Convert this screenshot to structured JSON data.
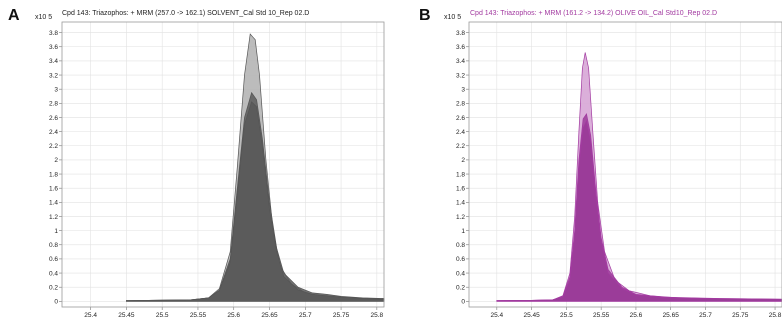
{
  "chart_data": [
    {
      "panel_label": "A",
      "type": "area",
      "title": "Cpd 143: Triazophos: + MRM (257.0 -> 162.1) SOLVENT_Cal Std 10_Rep 02.D",
      "y_multiplier_label": "x10 5",
      "xlim": [
        25.36,
        25.81
      ],
      "ylim": [
        -0.08,
        3.95
      ],
      "x_ticks": [
        "25.4",
        "25.45",
        "25.5",
        "25.55",
        "25.6",
        "25.65",
        "25.7",
        "25.75",
        "25.8"
      ],
      "x_tick_values": [
        25.4,
        25.45,
        25.5,
        25.55,
        25.6,
        25.65,
        25.7,
        25.75,
        25.8
      ],
      "y_ticks": [
        "0",
        "0.2",
        "0.4",
        "0.6",
        "0.8",
        "1",
        "1.2",
        "1.4",
        "1.6",
        "1.8",
        "2",
        "2.2",
        "2.4",
        "2.6",
        "2.8",
        "3",
        "3.2",
        "3.4",
        "3.6",
        "3.8"
      ],
      "y_tick_values": [
        0,
        0.2,
        0.4,
        0.6,
        0.8,
        1,
        1.2,
        1.4,
        1.6,
        1.8,
        2,
        2.2,
        2.4,
        2.6,
        2.8,
        3,
        3.2,
        3.4,
        3.6,
        3.8
      ],
      "grid": true,
      "series_color": "#555555",
      "series_fill": "#5a5a5a",
      "series_fill_light": "#b5b5b5",
      "series": [
        {
          "values": [
            [
              25.45,
              0.01
            ],
            [
              25.54,
              0.02
            ],
            [
              25.565,
              0.05
            ],
            [
              25.58,
              0.18
            ],
            [
              25.595,
              0.7
            ],
            [
              25.605,
              1.9
            ],
            [
              25.615,
              3.2
            ],
            [
              25.623,
              3.78
            ],
            [
              25.63,
              3.7
            ],
            [
              25.636,
              3.2
            ],
            [
              25.645,
              2.0
            ],
            [
              25.655,
              1.0
            ],
            [
              25.665,
              0.5
            ],
            [
              25.68,
              0.25
            ],
            [
              25.7,
              0.12
            ],
            [
              25.72,
              0.08
            ],
            [
              25.74,
              0.06
            ],
            [
              25.78,
              0.04
            ],
            [
              25.81,
              0.03
            ]
          ]
        },
        {
          "values": [
            [
              25.45,
              0.01
            ],
            [
              25.54,
              0.02
            ],
            [
              25.565,
              0.05
            ],
            [
              25.58,
              0.16
            ],
            [
              25.595,
              0.6
            ],
            [
              25.605,
              1.6
            ],
            [
              25.615,
              2.6
            ],
            [
              25.625,
              2.95
            ],
            [
              25.632,
              2.85
            ],
            [
              25.64,
              2.3
            ],
            [
              25.65,
              1.4
            ],
            [
              25.66,
              0.75
            ],
            [
              25.67,
              0.4
            ],
            [
              25.69,
              0.2
            ],
            [
              25.71,
              0.12
            ],
            [
              25.73,
              0.1
            ],
            [
              25.75,
              0.07
            ],
            [
              25.78,
              0.05
            ],
            [
              25.81,
              0.04
            ]
          ]
        },
        {
          "values": [
            [
              25.45,
              0.01
            ],
            [
              25.54,
              0.02
            ],
            [
              25.565,
              0.05
            ],
            [
              25.58,
              0.15
            ],
            [
              25.595,
              0.55
            ],
            [
              25.605,
              1.5
            ],
            [
              25.615,
              2.5
            ],
            [
              25.625,
              2.82
            ],
            [
              25.632,
              2.75
            ],
            [
              25.64,
              2.2
            ],
            [
              25.65,
              1.3
            ],
            [
              25.66,
              0.7
            ],
            [
              25.67,
              0.35
            ],
            [
              25.69,
              0.16
            ],
            [
              25.71,
              0.1
            ],
            [
              25.73,
              0.08
            ],
            [
              25.75,
              0.06
            ],
            [
              25.78,
              0.04
            ],
            [
              25.81,
              0.03
            ]
          ]
        }
      ]
    },
    {
      "panel_label": "B",
      "type": "area",
      "title": "Cpd 143: Triazophos: + MRM (161.2 -> 134.2) OLIVE OIL_Cal Std10_Rep 02.D",
      "y_multiplier_label": "x10 5",
      "xlim": [
        25.36,
        25.81
      ],
      "ylim": [
        -0.08,
        3.95
      ],
      "x_ticks": [
        "25.4",
        "25.45",
        "25.5",
        "25.55",
        "25.6",
        "25.65",
        "25.7",
        "25.75",
        "25.8"
      ],
      "x_tick_values": [
        25.4,
        25.45,
        25.5,
        25.55,
        25.6,
        25.65,
        25.7,
        25.75,
        25.8
      ],
      "y_ticks": [
        "0",
        "0.2",
        "0.4",
        "0.6",
        "0.8",
        "1",
        "1.2",
        "1.4",
        "1.6",
        "1.8",
        "2",
        "2.2",
        "2.4",
        "2.6",
        "2.8",
        "3",
        "3.2",
        "3.4",
        "3.6",
        "3.8"
      ],
      "y_tick_values": [
        0,
        0.2,
        0.4,
        0.6,
        0.8,
        1,
        1.2,
        1.4,
        1.6,
        1.8,
        2,
        2.2,
        2.4,
        2.6,
        2.8,
        3,
        3.2,
        3.4,
        3.6,
        3.8
      ],
      "grid": true,
      "series_color": "#a23aa0",
      "series_fill": "#9a3b98",
      "series_fill_light": "#d7a6d6",
      "series": [
        {
          "values": [
            [
              25.4,
              0.01
            ],
            [
              25.45,
              0.015
            ],
            [
              25.48,
              0.02
            ],
            [
              25.495,
              0.08
            ],
            [
              25.505,
              0.4
            ],
            [
              25.512,
              1.2
            ],
            [
              25.518,
              2.4
            ],
            [
              25.523,
              3.3
            ],
            [
              25.527,
              3.52
            ],
            [
              25.532,
              3.3
            ],
            [
              25.538,
              2.4
            ],
            [
              25.545,
              1.4
            ],
            [
              25.555,
              0.7
            ],
            [
              25.57,
              0.3
            ],
            [
              25.59,
              0.15
            ],
            [
              25.62,
              0.08
            ],
            [
              25.66,
              0.05
            ],
            [
              25.7,
              0.04
            ],
            [
              25.75,
              0.03
            ],
            [
              25.81,
              0.02
            ]
          ]
        },
        {
          "values": [
            [
              25.4,
              0.01
            ],
            [
              25.45,
              0.015
            ],
            [
              25.48,
              0.02
            ],
            [
              25.495,
              0.07
            ],
            [
              25.505,
              0.35
            ],
            [
              25.512,
              1.0
            ],
            [
              25.518,
              2.0
            ],
            [
              25.524,
              2.58
            ],
            [
              25.529,
              2.65
            ],
            [
              25.535,
              2.35
            ],
            [
              25.542,
              1.6
            ],
            [
              25.55,
              0.9
            ],
            [
              25.56,
              0.45
            ],
            [
              25.58,
              0.2
            ],
            [
              25.6,
              0.1
            ],
            [
              25.64,
              0.06
            ],
            [
              25.68,
              0.05
            ],
            [
              25.72,
              0.04
            ],
            [
              25.81,
              0.03
            ]
          ]
        },
        {
          "values": [
            [
              25.4,
              0.01
            ],
            [
              25.45,
              0.015
            ],
            [
              25.48,
              0.02
            ],
            [
              25.495,
              0.06
            ],
            [
              25.505,
              0.3
            ],
            [
              25.512,
              0.95
            ],
            [
              25.518,
              1.9
            ],
            [
              25.524,
              2.45
            ],
            [
              25.529,
              2.55
            ],
            [
              25.535,
              2.25
            ],
            [
              25.542,
              1.5
            ],
            [
              25.55,
              0.85
            ],
            [
              25.56,
              0.4
            ],
            [
              25.58,
              0.18
            ],
            [
              25.6,
              0.09
            ],
            [
              25.64,
              0.05
            ],
            [
              25.7,
              0.04
            ],
            [
              25.81,
              0.03
            ]
          ]
        }
      ]
    }
  ]
}
